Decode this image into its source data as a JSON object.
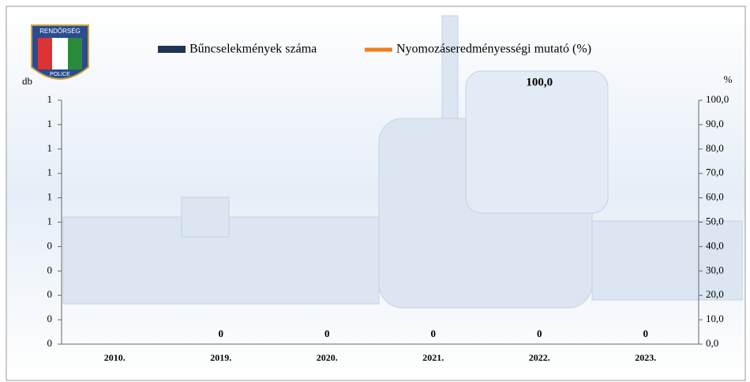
{
  "logo": {
    "top": "RENDŐRSÉG",
    "bottom": "POLICE"
  },
  "chart_data": {
    "type": "bar-line",
    "y_label": "db",
    "y2_label": "%",
    "categories": [
      "2010.",
      "2019.",
      "2020.",
      "2021.",
      "2022.",
      "2023."
    ],
    "series": [
      {
        "name": "Bűncselekmények száma",
        "type": "bar",
        "color": "#1f3553",
        "values": [
          null,
          0,
          0,
          0,
          0,
          0
        ]
      },
      {
        "name": "Nyomozáseredményességi mutató (%)",
        "type": "line",
        "axis": "y2",
        "color": "#f07d1a",
        "values": [
          null,
          null,
          null,
          null,
          100,
          null
        ],
        "value_labels": [
          null,
          null,
          null,
          null,
          "100,0",
          null
        ]
      }
    ],
    "ylim": [
      0,
      1
    ],
    "yticks": [
      {
        "value": 0,
        "label": "0"
      },
      {
        "value": 0.1,
        "label": "0"
      },
      {
        "value": 0.2,
        "label": "0"
      },
      {
        "value": 0.3,
        "label": "0"
      },
      {
        "value": 0.4,
        "label": "0"
      },
      {
        "value": 0.5,
        "label": "1"
      },
      {
        "value": 0.6,
        "label": "1"
      },
      {
        "value": 0.7,
        "label": "1"
      },
      {
        "value": 0.8,
        "label": "1"
      },
      {
        "value": 0.9,
        "label": "1"
      },
      {
        "value": 1,
        "label": "1"
      }
    ],
    "y2lim": [
      0,
      100
    ],
    "y2ticks": [
      {
        "value": 0,
        "label": "0,0"
      },
      {
        "value": 10,
        "label": "10,0"
      },
      {
        "value": 20,
        "label": "20,0"
      },
      {
        "value": 30,
        "label": "30,0"
      },
      {
        "value": 40,
        "label": "40,0"
      },
      {
        "value": 50,
        "label": "50,0"
      },
      {
        "value": 60,
        "label": "60,0"
      },
      {
        "value": 70,
        "label": "70,0"
      },
      {
        "value": 80,
        "label": "80,0"
      },
      {
        "value": 90,
        "label": "90,0"
      },
      {
        "value": 100,
        "label": "100,0"
      }
    ]
  }
}
